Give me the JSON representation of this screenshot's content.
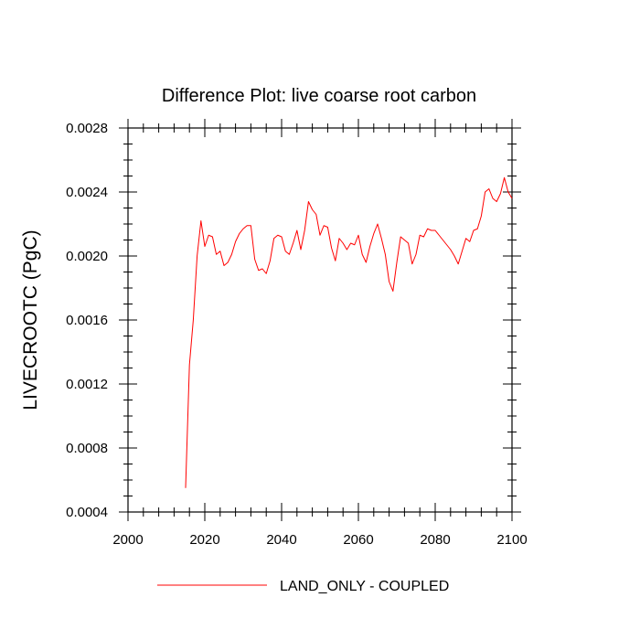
{
  "chart_data": {
    "type": "line",
    "title": "Difference Plot: live coarse root carbon",
    "xlabel": "",
    "ylabel": "LIVECROOTC  (PgC)",
    "xlim": [
      2000,
      2100
    ],
    "ylim": [
      0.0004,
      0.0028
    ],
    "xticks": [
      "2000",
      "2020",
      "2040",
      "2060",
      "2080",
      "2100"
    ],
    "yticks": [
      "0.0004",
      "0.0008",
      "0.0012",
      "0.0016",
      "0.0020",
      "0.0024",
      "0.0028"
    ],
    "grid": false,
    "legend_position": "bottom",
    "series": [
      {
        "name": "LAND_ONLY - COUPLED",
        "color": "#ff0000",
        "x": [
          2015,
          2016,
          2017,
          2018,
          2019,
          2020,
          2021,
          2022,
          2023,
          2024,
          2025,
          2026,
          2027,
          2028,
          2029,
          2030,
          2031,
          2032,
          2033,
          2034,
          2035,
          2036,
          2037,
          2038,
          2039,
          2040,
          2041,
          2042,
          2043,
          2044,
          2045,
          2046,
          2047,
          2048,
          2049,
          2050,
          2051,
          2052,
          2053,
          2054,
          2055,
          2056,
          2057,
          2058,
          2059,
          2060,
          2061,
          2062,
          2063,
          2064,
          2065,
          2066,
          2067,
          2068,
          2069,
          2070,
          2071,
          2072,
          2073,
          2074,
          2075,
          2076,
          2077,
          2078,
          2079,
          2080,
          2081,
          2082,
          2083,
          2084,
          2085,
          2086,
          2087,
          2088,
          2089,
          2090,
          2091,
          2092,
          2093,
          2094,
          2095,
          2096,
          2097,
          2098,
          2099,
          2100
        ],
        "y": [
          0.00055,
          0.00132,
          0.0016,
          0.002,
          0.00222,
          0.00206,
          0.00213,
          0.00212,
          0.00201,
          0.00203,
          0.00194,
          0.00196,
          0.00201,
          0.00209,
          0.00214,
          0.00217,
          0.00219,
          0.00219,
          0.00198,
          0.00191,
          0.00192,
          0.00189,
          0.00197,
          0.00211,
          0.00213,
          0.00212,
          0.00203,
          0.00201,
          0.00208,
          0.00216,
          0.00204,
          0.00216,
          0.00234,
          0.00229,
          0.00226,
          0.00213,
          0.00219,
          0.00218,
          0.00205,
          0.00197,
          0.00211,
          0.00208,
          0.00204,
          0.00208,
          0.00207,
          0.00213,
          0.00201,
          0.00196,
          0.00206,
          0.00214,
          0.0022,
          0.00211,
          0.00201,
          0.00184,
          0.00178,
          0.00196,
          0.00212,
          0.0021,
          0.00208,
          0.00195,
          0.00201,
          0.00213,
          0.00212,
          0.00217,
          0.00216,
          0.00216,
          0.00213,
          0.0021,
          0.00207,
          0.00204,
          0.002,
          0.00195,
          0.00203,
          0.00211,
          0.00209,
          0.00216,
          0.00217,
          0.00225,
          0.0024,
          0.00242,
          0.00236,
          0.00234,
          0.00239,
          0.00249,
          0.0024,
          0.00236
        ]
      }
    ]
  }
}
